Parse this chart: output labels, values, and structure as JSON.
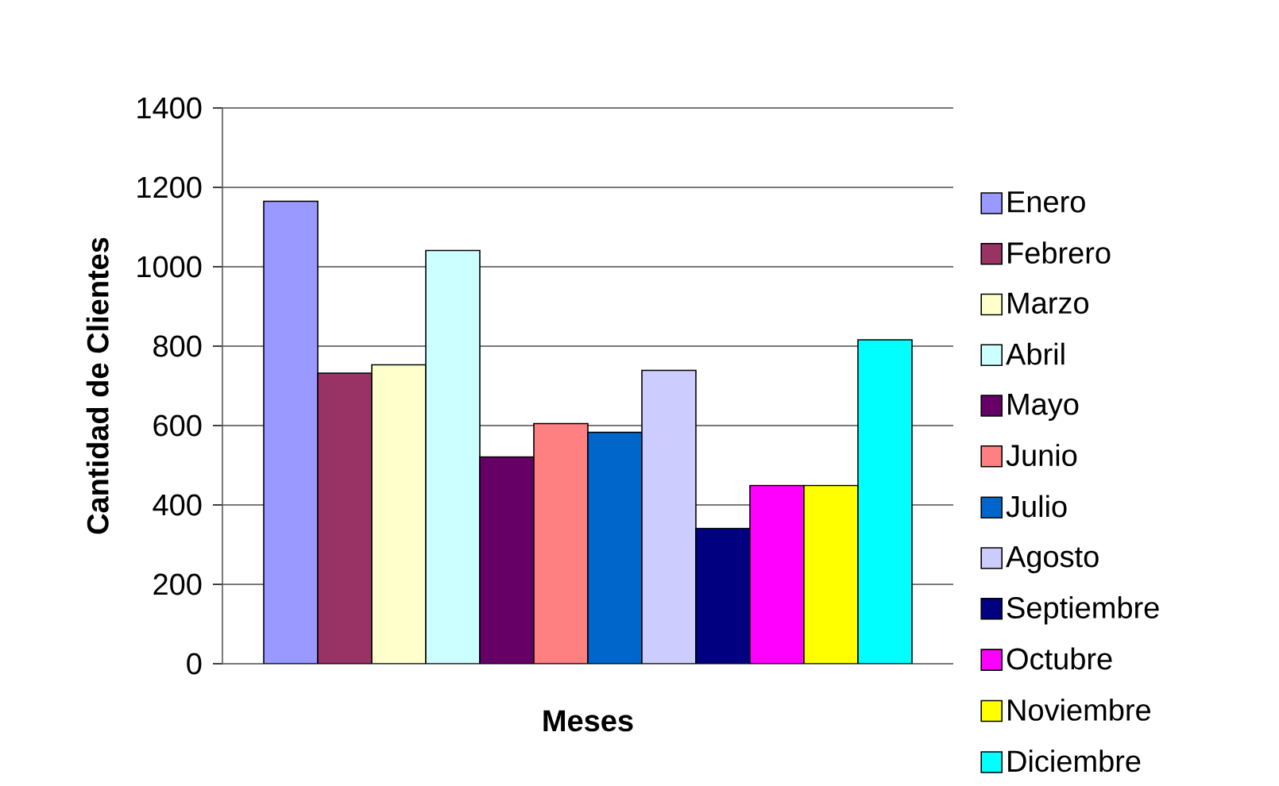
{
  "chart_data": {
    "type": "bar",
    "xlabel": "Meses",
    "ylabel": "Cantidad de Clientes",
    "categories": [
      null
    ],
    "ylim": [
      0,
      1400
    ],
    "yticks": [
      0,
      200,
      400,
      600,
      800,
      1000,
      1200,
      1400
    ],
    "grid": "y",
    "legend": "right",
    "series": [
      {
        "name": "Enero",
        "color": "#9999ff",
        "values": [
          1165
        ]
      },
      {
        "name": "Febrero",
        "color": "#993366",
        "values": [
          732
        ]
      },
      {
        "name": "Marzo",
        "color": "#ffffcc",
        "values": [
          753
        ]
      },
      {
        "name": "Abril",
        "color": "#ccffff",
        "values": [
          1041
        ]
      },
      {
        "name": "Mayo",
        "color": "#660066",
        "values": [
          521
        ]
      },
      {
        "name": "Junio",
        "color": "#ff8080",
        "values": [
          605
        ]
      },
      {
        "name": "Julio",
        "color": "#0066cc",
        "values": [
          583
        ]
      },
      {
        "name": "Agosto",
        "color": "#ccccff",
        "values": [
          739
        ]
      },
      {
        "name": "Septiembre",
        "color": "#000080",
        "values": [
          341
        ]
      },
      {
        "name": "Octubre",
        "color": "#ff00ff",
        "values": [
          449
        ]
      },
      {
        "name": "Noviembre",
        "color": "#ffff00",
        "values": [
          449
        ]
      },
      {
        "name": "Diciembre",
        "color": "#00ffff",
        "values": [
          816
        ]
      }
    ]
  }
}
